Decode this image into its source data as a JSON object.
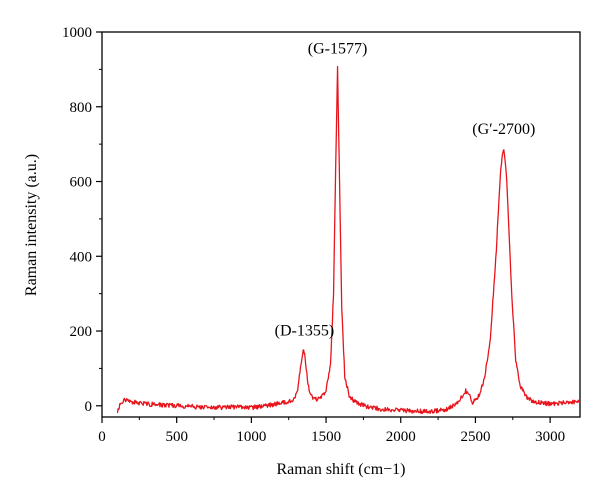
{
  "chart_data": {
    "type": "line",
    "xlabel": "Raman shift (cm−1)",
    "ylabel": "Raman intensity (a.u.)",
    "xlim": [
      0,
      3200
    ],
    "ylim": [
      -30,
      1000
    ],
    "x_ticks": [
      0,
      500,
      1000,
      1500,
      2000,
      2500,
      3000
    ],
    "y_ticks": [
      0,
      200,
      400,
      600,
      800,
      1000
    ],
    "grid": false,
    "legend": "none",
    "line_color": "#e8141c",
    "series": [
      {
        "points": [
          [
            100,
            -15
          ],
          [
            130,
            8
          ],
          [
            150,
            15
          ],
          [
            200,
            10
          ],
          [
            300,
            5
          ],
          [
            400,
            2
          ],
          [
            500,
            0
          ],
          [
            600,
            -2
          ],
          [
            700,
            -5
          ],
          [
            800,
            -4
          ],
          [
            900,
            -3
          ],
          [
            1000,
            -5
          ],
          [
            1100,
            0
          ],
          [
            1150,
            3
          ],
          [
            1200,
            8
          ],
          [
            1230,
            10
          ],
          [
            1260,
            12
          ],
          [
            1290,
            20
          ],
          [
            1310,
            45
          ],
          [
            1325,
            90
          ],
          [
            1340,
            135
          ],
          [
            1350,
            150
          ],
          [
            1360,
            128
          ],
          [
            1375,
            70
          ],
          [
            1395,
            30
          ],
          [
            1420,
            18
          ],
          [
            1460,
            20
          ],
          [
            1500,
            40
          ],
          [
            1530,
            110
          ],
          [
            1550,
            300
          ],
          [
            1565,
            650
          ],
          [
            1577,
            905
          ],
          [
            1588,
            650
          ],
          [
            1605,
            260
          ],
          [
            1625,
            80
          ],
          [
            1655,
            25
          ],
          [
            1700,
            8
          ],
          [
            1800,
            -5
          ],
          [
            1900,
            -10
          ],
          [
            2000,
            -12
          ],
          [
            2100,
            -15
          ],
          [
            2200,
            -15
          ],
          [
            2300,
            -10
          ],
          [
            2350,
            0
          ],
          [
            2400,
            18
          ],
          [
            2435,
            40
          ],
          [
            2455,
            30
          ],
          [
            2480,
            10
          ],
          [
            2520,
            25
          ],
          [
            2560,
            70
          ],
          [
            2600,
            180
          ],
          [
            2640,
            420
          ],
          [
            2670,
            640
          ],
          [
            2690,
            690
          ],
          [
            2710,
            600
          ],
          [
            2740,
            320
          ],
          [
            2770,
            120
          ],
          [
            2800,
            50
          ],
          [
            2850,
            20
          ],
          [
            2900,
            10
          ],
          [
            3000,
            5
          ],
          [
            3100,
            8
          ],
          [
            3200,
            10
          ]
        ]
      }
    ],
    "annotations": [
      {
        "text": "(D-1355)",
        "x": 1355,
        "y": 150
      },
      {
        "text": "(G-1577)",
        "x": 1577,
        "y": 905
      },
      {
        "text": "(G′-2700)",
        "x": 2690,
        "y": 690
      }
    ]
  }
}
